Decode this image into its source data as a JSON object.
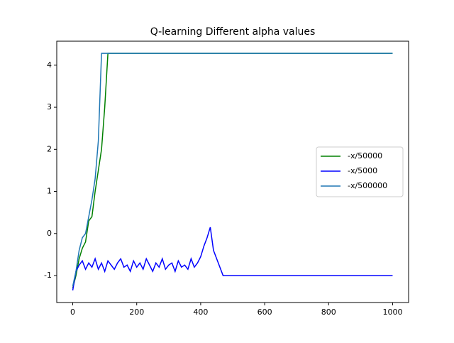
{
  "chart_data": {
    "type": "line",
    "title": "Q-learning Different alpha values",
    "x": [
      0,
      10,
      20,
      30,
      40,
      50,
      60,
      70,
      80,
      90,
      100,
      110,
      120,
      130,
      140,
      150,
      160,
      170,
      180,
      190,
      200,
      210,
      220,
      230,
      240,
      250,
      260,
      270,
      280,
      290,
      300,
      310,
      320,
      330,
      340,
      350,
      360,
      370,
      380,
      390,
      400,
      410,
      420,
      430,
      440,
      450,
      460,
      470,
      1000
    ],
    "series": [
      {
        "name": "-x/50000",
        "color": "#008000",
        "values": [
          -1.3,
          -1.0,
          -0.6,
          -0.35,
          -0.2,
          0.3,
          0.4,
          1.0,
          1.5,
          2.0,
          3.0,
          4.28,
          4.28,
          4.28,
          4.28,
          4.28,
          4.28,
          4.28,
          4.28,
          4.28,
          4.28,
          4.28,
          4.28,
          4.28,
          4.28,
          4.28,
          4.28,
          4.28,
          4.28,
          4.28,
          4.28,
          4.28,
          4.28,
          4.28,
          4.28,
          4.28,
          4.28,
          4.28,
          4.28,
          4.28,
          4.28,
          4.28,
          4.28,
          4.28,
          4.28,
          4.28,
          4.28,
          4.28,
          4.28
        ]
      },
      {
        "name": "-x/5000",
        "color": "#0000ff",
        "values": [
          -1.35,
          -0.9,
          -0.75,
          -0.65,
          -0.85,
          -0.7,
          -0.8,
          -0.6,
          -0.85,
          -0.7,
          -0.9,
          -0.65,
          -0.75,
          -0.85,
          -0.7,
          -0.6,
          -0.8,
          -0.75,
          -0.9,
          -0.65,
          -0.8,
          -0.7,
          -0.85,
          -0.6,
          -0.75,
          -0.9,
          -0.7,
          -0.8,
          -0.6,
          -0.85,
          -0.75,
          -0.7,
          -0.9,
          -0.65,
          -0.8,
          -0.75,
          -0.85,
          -0.6,
          -0.8,
          -0.7,
          -0.55,
          -0.3,
          -0.1,
          0.15,
          -0.4,
          -0.6,
          -0.8,
          -1.0,
          -1.0
        ]
      },
      {
        "name": "-x/500000",
        "color": "#1f77b4",
        "values": [
          -1.25,
          -0.9,
          -0.4,
          -0.1,
          0.0,
          0.4,
          0.8,
          1.3,
          2.2,
          4.28,
          4.28,
          4.28,
          4.28,
          4.28,
          4.28,
          4.28,
          4.28,
          4.28,
          4.28,
          4.28,
          4.28,
          4.28,
          4.28,
          4.28,
          4.28,
          4.28,
          4.28,
          4.28,
          4.28,
          4.28,
          4.28,
          4.28,
          4.28,
          4.28,
          4.28,
          4.28,
          4.28,
          4.28,
          4.28,
          4.28,
          4.28,
          4.28,
          4.28,
          4.28,
          4.28,
          4.28,
          4.28,
          4.28,
          4.28
        ]
      }
    ],
    "xlim": [
      -50,
      1050
    ],
    "ylim": [
      -1.64,
      4.57
    ],
    "xticks": [
      0,
      200,
      400,
      600,
      800,
      1000
    ],
    "yticks": [
      -1,
      0,
      1,
      2,
      3,
      4
    ],
    "legend": "center right"
  }
}
